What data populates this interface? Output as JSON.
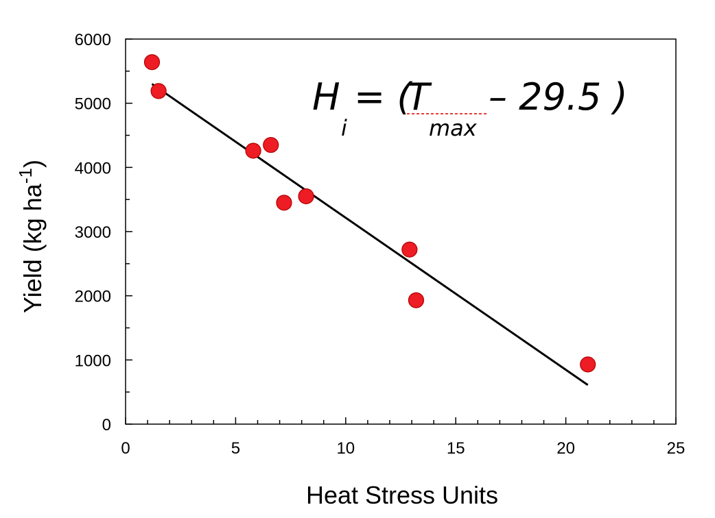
{
  "chart_data": {
    "type": "scatter",
    "xlabel": "Heat Stress Units",
    "ylabel": "Yield (kg ha",
    "ylabel_superscript": "-1",
    "ylabel_close": ")",
    "xlim": [
      0,
      25
    ],
    "ylim": [
      0,
      6000
    ],
    "x_ticks": [
      0,
      5,
      10,
      15,
      20,
      25
    ],
    "y_ticks": [
      0,
      1000,
      2000,
      3000,
      4000,
      5000,
      6000
    ],
    "x_minor_step": 1,
    "y_minor_step": 500,
    "grid": false,
    "points": [
      {
        "x": 1.2,
        "y": 5640
      },
      {
        "x": 1.5,
        "y": 5190
      },
      {
        "x": 5.8,
        "y": 4260
      },
      {
        "x": 6.6,
        "y": 4350
      },
      {
        "x": 7.2,
        "y": 3450
      },
      {
        "x": 8.2,
        "y": 3550
      },
      {
        "x": 12.9,
        "y": 2720
      },
      {
        "x": 13.2,
        "y": 1930
      },
      {
        "x": 21.0,
        "y": 930
      }
    ],
    "point_color": "#ee1c24",
    "point_edge_color": "#b00000",
    "regression_line": {
      "x": [
        1.2,
        21.0
      ],
      "y": [
        5300,
        610
      ]
    },
    "annotation": {
      "H": "H",
      "H_sub": "i",
      "eq_open": "= (",
      "T": "T",
      "T_sub": "max",
      "eq_rest": "– 29.5 )"
    }
  }
}
